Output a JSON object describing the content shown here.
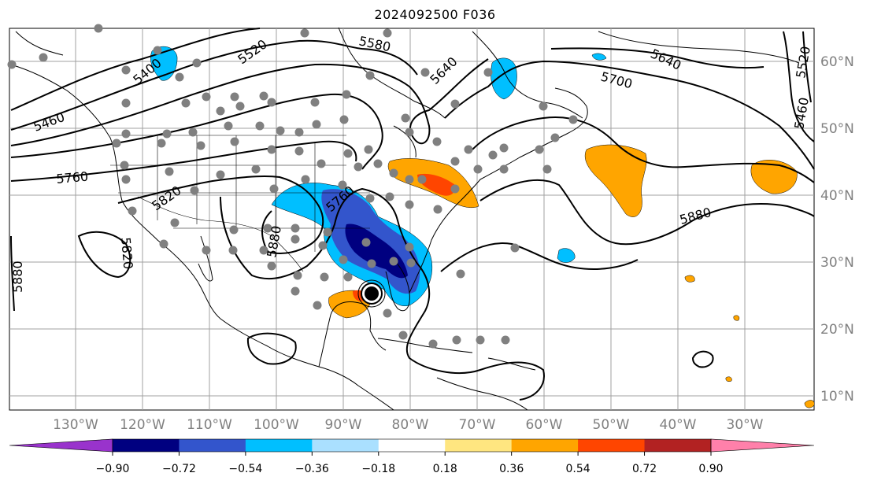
{
  "title": "2024092500 F036",
  "map": {
    "longitude_ticks": [
      "130°W",
      "120°W",
      "110°W",
      "100°W",
      "90°W",
      "80°W",
      "70°W",
      "60°W",
      "50°W",
      "40°W",
      "30°W"
    ],
    "latitude_ticks": [
      "60°N",
      "50°N",
      "40°N",
      "30°N",
      "20°N",
      "10°N"
    ],
    "contour_labels": [
      "5400",
      "5460",
      "5520",
      "5580",
      "5640",
      "5640",
      "5700",
      "5760",
      "5760",
      "5820",
      "5820",
      "5880",
      "5880",
      "5880",
      "5460",
      "5520"
    ],
    "hurricane_marker": "tropical-cyclone-icon"
  },
  "colorbar": {
    "ticks": [
      "−0.90",
      "−0.72",
      "−0.54",
      "−0.36",
      "−0.18",
      "0.18",
      "0.36",
      "0.54",
      "0.72",
      "0.90"
    ],
    "colors": [
      "#9933cc",
      "#000080",
      "#3355cc",
      "#00bfff",
      "#aae0ff",
      "#ffffff",
      "#ffe680",
      "#ffa500",
      "#ff4500",
      "#b22222",
      "#ff80aa"
    ]
  },
  "colors": {
    "grid": "#a0a0a0",
    "station": "#808080"
  }
}
